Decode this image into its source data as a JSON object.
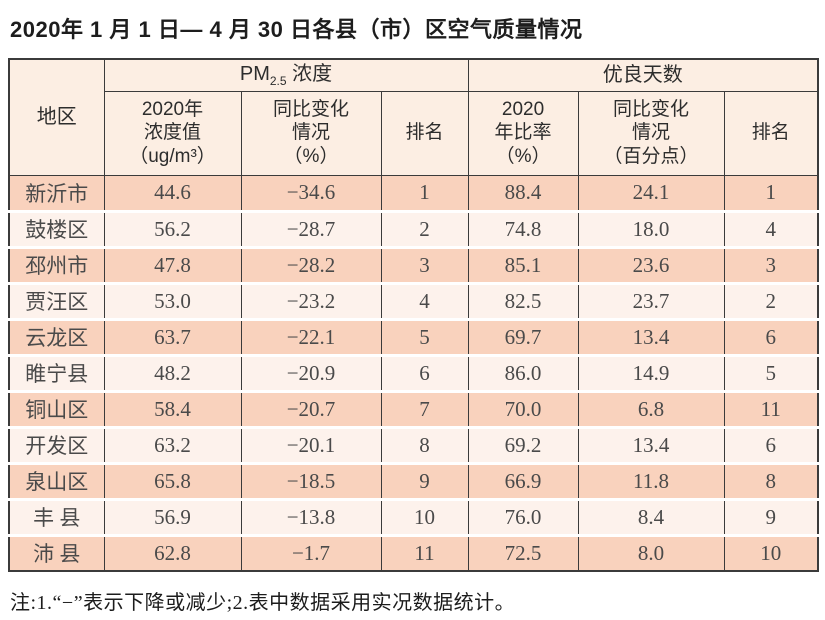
{
  "title": "2020年 1 月 1 日— 4 月 30 日各县（市）区空气质量情况",
  "note": "注:1.“−”表示下降或减少;2.表中数据采用实况数据统计。",
  "colors": {
    "row_odd_bg": "#f9d2bd",
    "row_even_bg": "#fdf2ec",
    "header_bg": "#fceee3",
    "border": "#3b3b3b"
  },
  "table": {
    "region_header": "地区",
    "pm_group": {
      "prefix": "PM",
      "sub": "2.5",
      "suffix": " 浓度"
    },
    "good_days_group": "优良天数",
    "sub_headers": {
      "pm_value": "2020年\n浓度值\n（ug/m³）",
      "pm_change": "同比变化\n情况\n（%）",
      "pm_rank": "排名",
      "days_ratio": "2020\n年比率\n（%）",
      "days_change": "同比变化\n情况\n（百分点）",
      "days_rank": "排名"
    },
    "column_keys": [
      "region",
      "pm-value",
      "pm-change",
      "pm-rank",
      "days-ratio",
      "days-change",
      "days-rank"
    ],
    "rows": [
      [
        "新沂市",
        "44.6",
        "−34.6",
        "1",
        "88.4",
        "24.1",
        "1"
      ],
      [
        "鼓楼区",
        "56.2",
        "−28.7",
        "2",
        "74.8",
        "18.0",
        "4"
      ],
      [
        "邳州市",
        "47.8",
        "−28.2",
        "3",
        "85.1",
        "23.6",
        "3"
      ],
      [
        "贾汪区",
        "53.0",
        "−23.2",
        "4",
        "82.5",
        "23.7",
        "2"
      ],
      [
        "云龙区",
        "63.7",
        "−22.1",
        "5",
        "69.7",
        "13.4",
        "6"
      ],
      [
        "睢宁县",
        "48.2",
        "−20.9",
        "6",
        "86.0",
        "14.9",
        "5"
      ],
      [
        "铜山区",
        "58.4",
        "−20.7",
        "7",
        "70.0",
        "6.8",
        "11"
      ],
      [
        "开发区",
        "63.2",
        "−20.1",
        "8",
        "69.2",
        "13.4",
        "6"
      ],
      [
        "泉山区",
        "65.8",
        "−18.5",
        "9",
        "66.9",
        "11.8",
        "8"
      ],
      [
        "丰 县",
        "56.9",
        "−13.8",
        "10",
        "76.0",
        "8.4",
        "9"
      ],
      [
        "沛 县",
        "62.8",
        "−1.7",
        "11",
        "72.5",
        "8.0",
        "10"
      ]
    ]
  }
}
